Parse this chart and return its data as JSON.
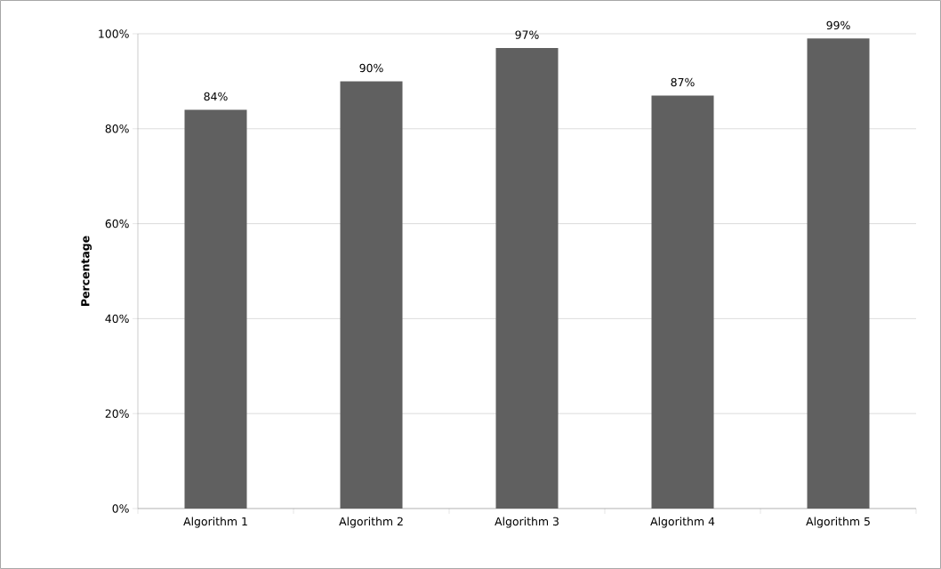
{
  "chart_data": {
    "type": "bar",
    "ylabel": "Percentage",
    "categories": [
      "Algorithm 1",
      "Algorithm 2",
      "Algorithm 3",
      "Algorithm 4",
      "Algorithm 5"
    ],
    "values": [
      84,
      90,
      97,
      87,
      99
    ],
    "value_labels": [
      "84%",
      "90%",
      "97%",
      "87%",
      "99%"
    ],
    "color": "#606060",
    "ylim": [
      0,
      100
    ],
    "yticks": [
      {
        "value": 0,
        "label": "0%"
      },
      {
        "value": 20,
        "label": "20%"
      },
      {
        "value": 40,
        "label": "40%"
      },
      {
        "value": 60,
        "label": "60%"
      },
      {
        "value": 80,
        "label": "80%"
      },
      {
        "value": 100,
        "label": "100%"
      }
    ],
    "grid": "y"
  }
}
